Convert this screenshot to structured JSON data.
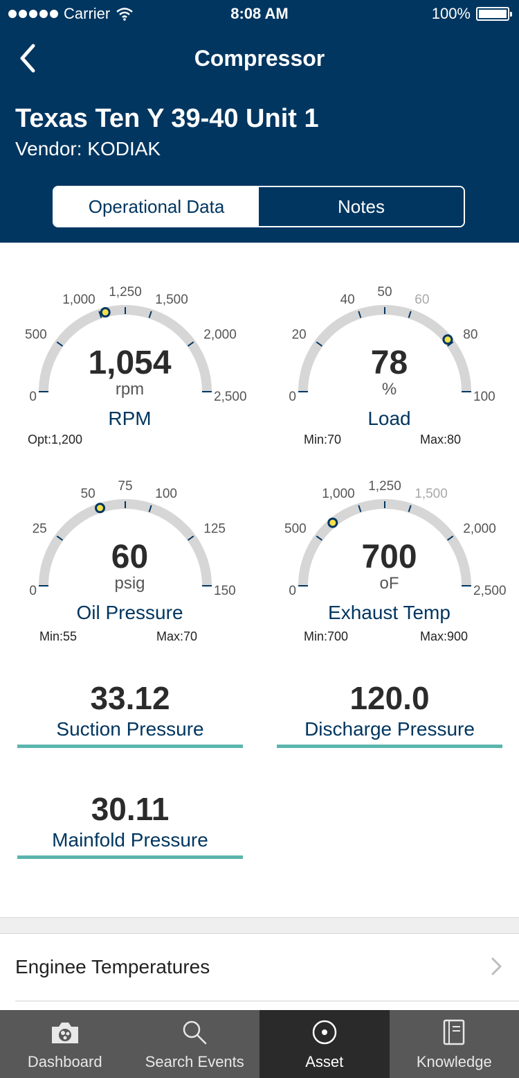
{
  "status_bar": {
    "carrier": "Carrier",
    "time": "8:08 AM",
    "battery": "100%"
  },
  "nav": {
    "title": "Compressor"
  },
  "asset": {
    "name": "Texas Ten Y 39-40 Unit 1",
    "vendor": "Vendor: KODIAK"
  },
  "segments": {
    "operational": "Operational Data",
    "notes": "Notes"
  },
  "gauges": [
    {
      "value": "1,054",
      "unit": "rpm",
      "name": "RPM",
      "min_label": "Opt:1,200",
      "max_label": "",
      "ticks": [
        "0",
        "500",
        "1,000",
        "1,250",
        "1,500",
        "2,000",
        "2,500"
      ],
      "fraction": 0.4216,
      "dim_ticks": []
    },
    {
      "value": "78",
      "unit": "%",
      "name": "Load",
      "min_label": "Min:70",
      "max_label": "Max:80",
      "ticks": [
        "0",
        "20",
        "40",
        "50",
        "60",
        "80",
        "100"
      ],
      "fraction": 0.78,
      "dim_ticks": [
        4
      ]
    },
    {
      "value": "60",
      "unit": "psig",
      "name": "Oil Pressure",
      "min_label": "Min:55",
      "max_label": "Max:70",
      "ticks": [
        "0",
        "25",
        "50",
        "75",
        "100",
        "125",
        "150"
      ],
      "fraction": 0.4,
      "dim_ticks": []
    },
    {
      "value": "700",
      "unit": "oF",
      "name": "Exhaust Temp",
      "min_label": "Min:700",
      "max_label": "Max:900",
      "ticks": [
        "0",
        "500",
        "1,000",
        "1,250",
        "1,500",
        "2,000",
        "2,500"
      ],
      "fraction": 0.28,
      "dim_ticks": [
        4
      ]
    }
  ],
  "tiles": [
    {
      "value": "33.12",
      "label": "Suction Pressure"
    },
    {
      "value": "120.0",
      "label": "Discharge Pressure"
    },
    {
      "value": "30.11",
      "label": "Mainfold Pressure"
    }
  ],
  "section": {
    "engine_temps": "Enginee Temperatures"
  },
  "tabs": [
    {
      "label": "Dashboard",
      "icon": "dashboard-icon"
    },
    {
      "label": "Search Events",
      "icon": "search-icon"
    },
    {
      "label": "Asset",
      "icon": "asset-icon"
    },
    {
      "label": "Knowledge",
      "icon": "knowledge-icon"
    }
  ],
  "colors": {
    "header": "#003660",
    "accent": "#5ab5ac",
    "gauge_track": "#d6d6d6",
    "indicator": "#f4e04d"
  }
}
